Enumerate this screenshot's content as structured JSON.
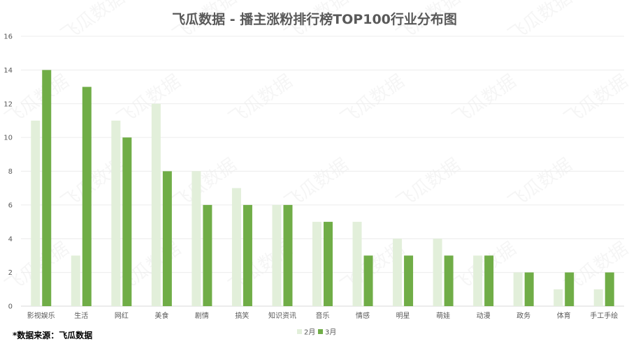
{
  "chart_data": {
    "type": "bar",
    "title": "飞瓜数据 - 播主涨粉排行榜TOP100行业分布图",
    "categories": [
      "影视娱乐",
      "生活",
      "网红",
      "美食",
      "剧情",
      "搞笑",
      "知识资讯",
      "音乐",
      "情感",
      "明星",
      "萌娃",
      "动漫",
      "政务",
      "体育",
      "手工手绘"
    ],
    "series": [
      {
        "name": "2月",
        "color": "#e2efda",
        "values": [
          11,
          3,
          11,
          12,
          8,
          7,
          6,
          5,
          5,
          4,
          4,
          3,
          2,
          1,
          1
        ]
      },
      {
        "name": "3月",
        "color": "#70ad47",
        "values": [
          14,
          13,
          10,
          8,
          6,
          6,
          6,
          5,
          3,
          3,
          3,
          3,
          2,
          2,
          2
        ]
      }
    ],
    "ylim": [
      0,
      16
    ],
    "yticks": [
      0,
      2,
      4,
      6,
      8,
      10,
      12,
      14,
      16
    ],
    "grid": true,
    "legend_position": "bottom"
  },
  "watermark": "飞瓜数据",
  "source_note": "*数据来源：飞瓜数据"
}
